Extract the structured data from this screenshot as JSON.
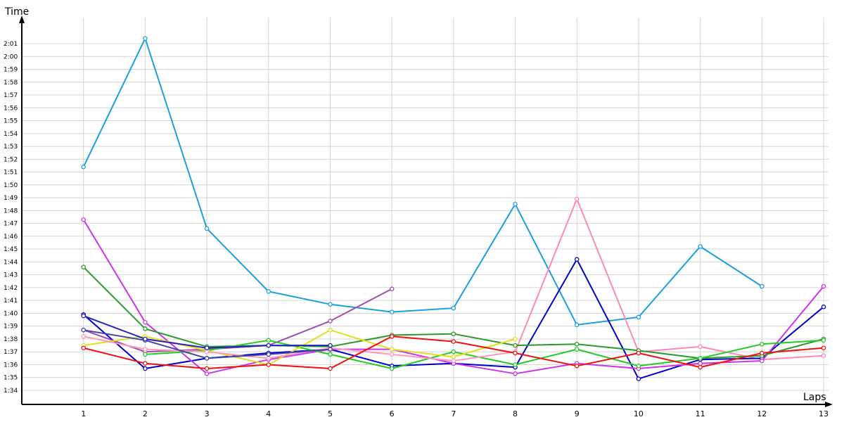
{
  "chart_data": {
    "type": "line",
    "xlabel": "Laps",
    "ylabel": "Time",
    "x": [
      1,
      2,
      3,
      4,
      5,
      6,
      7,
      8,
      9,
      10,
      11,
      12,
      13
    ],
    "ylim": [
      93,
      122
    ],
    "y_unit": "seconds",
    "y_tick_labels": [
      "1:34",
      "1:35",
      "1:36",
      "1:37",
      "1:38",
      "1:39",
      "1:40",
      "1:41",
      "1:42",
      "1:43",
      "1:44",
      "1:45",
      "1:46",
      "1:47",
      "1:48",
      "1:49",
      "1:50",
      "1:51",
      "1:52",
      "1:53",
      "1:54",
      "1:55",
      "1:56",
      "1:57",
      "1:58",
      "1:59",
      "2:00",
      "2:01"
    ],
    "grid": true,
    "series": [
      {
        "color": "#1a9fe0",
        "values": [
          111.4,
          121.4,
          106.6,
          101.7,
          100.7,
          100.1,
          100.4,
          108.5,
          99.1,
          99.7,
          105.2,
          102.1,
          null
        ]
      },
      {
        "color": "#ff88bb",
        "values": [
          null,
          null,
          null,
          null,
          null,
          null,
          null,
          97.0,
          108.9,
          97.0,
          97.4,
          96.4,
          96.7
        ]
      },
      {
        "color": "#0000cc",
        "values": [
          99.9,
          95.7,
          96.5,
          96.9,
          97.2,
          95.9,
          96.1,
          95.8,
          104.2,
          94.9,
          96.4,
          96.5,
          100.5
        ]
      },
      {
        "color": "#cc33ee",
        "values": [
          107.3,
          99.3,
          95.3,
          96.4,
          97.2,
          97.2,
          96.1,
          95.3,
          96.1,
          95.7,
          96.1,
          96.3,
          102.1
        ]
      },
      {
        "color": "#2a9a2a",
        "values": [
          103.6,
          98.8,
          97.4,
          97.5,
          97.4,
          98.3,
          98.4,
          97.5,
          97.6,
          97.1,
          96.5,
          96.7,
          98.0
        ]
      },
      {
        "color": "#a04db0",
        "values": [
          98.7,
          97.0,
          97.2,
          97.5,
          99.4,
          101.9,
          null,
          null,
          null,
          null,
          null,
          null,
          null
        ]
      },
      {
        "color": "#22cc22",
        "values": [
          null,
          96.8,
          97.1,
          97.9,
          96.8,
          95.7,
          97.0,
          96.0,
          97.2,
          95.9,
          96.5,
          97.6,
          97.9
        ]
      },
      {
        "color": "#e0e020",
        "values": [
          97.5,
          98.2,
          97.1,
          96.0,
          98.7,
          97.2,
          96.6,
          98.0,
          null,
          null,
          null,
          null,
          null
        ]
      },
      {
        "color": "#ff99bb",
        "values": [
          98.2,
          97.2,
          97.0,
          96.5,
          97.3,
          96.8,
          96.3,
          97.0,
          null,
          null,
          null,
          null,
          null
        ]
      },
      {
        "color": "#ee1111",
        "values": [
          97.3,
          96.1,
          95.7,
          96.0,
          95.7,
          98.2,
          97.8,
          96.9,
          95.9,
          96.9,
          95.8,
          96.9,
          97.3
        ]
      },
      {
        "color": "#4444aa",
        "values": [
          98.7,
          97.9,
          96.5,
          96.8,
          97.2,
          null,
          null,
          null,
          null,
          null,
          null,
          null,
          null
        ]
      },
      {
        "color": "#2222bb",
        "values": [
          99.8,
          98.0,
          97.3,
          97.5,
          97.5,
          null,
          null,
          null,
          null,
          null,
          null,
          null,
          null
        ]
      }
    ]
  }
}
